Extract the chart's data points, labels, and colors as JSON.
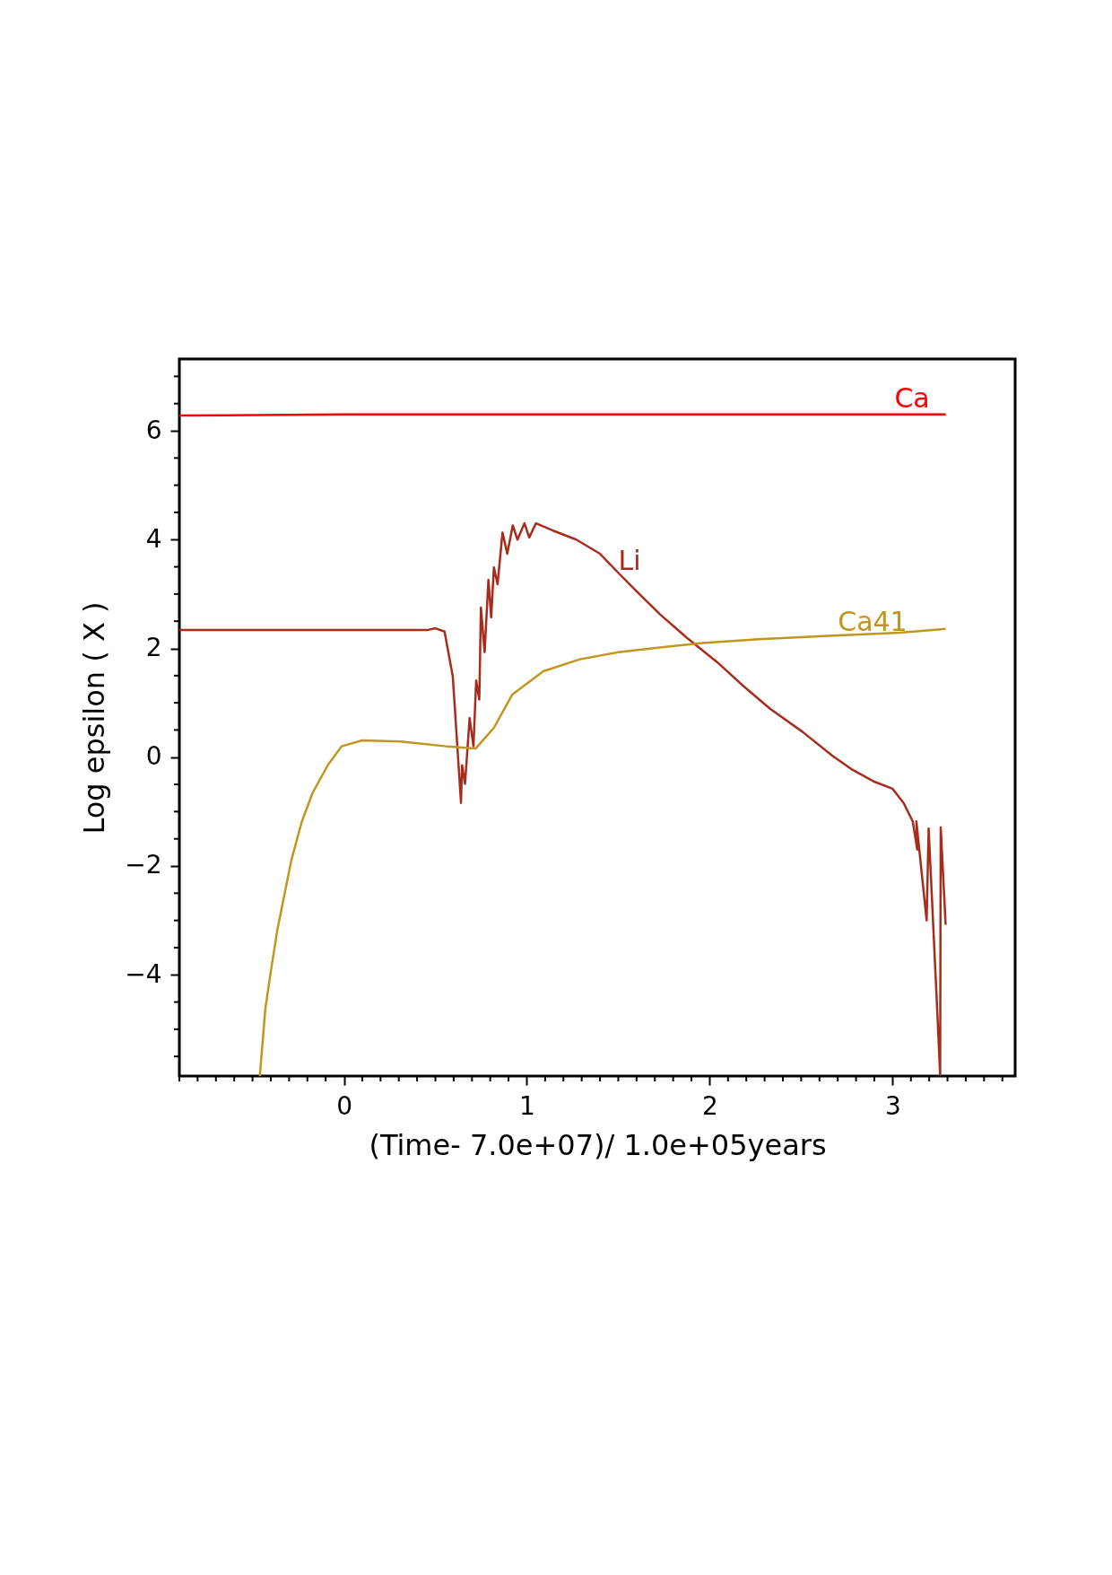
{
  "chart_data": {
    "type": "line",
    "xlabel": "(Time- 7.0e+07)/ 1.0e+05years",
    "ylabel": "Log epsilon ( X )",
    "xlim": [
      -0.9,
      3.67
    ],
    "ylim": [
      -5.86,
      7.32
    ],
    "xticks": [
      {
        "value": -0.9,
        "label": null
      },
      {
        "value": -0.8,
        "label": null
      },
      {
        "value": -0.7,
        "label": null
      },
      {
        "value": -0.6,
        "label": null
      },
      {
        "value": -0.5,
        "label": null
      },
      {
        "value": -0.4,
        "label": null
      },
      {
        "value": -0.3,
        "label": null
      },
      {
        "value": -0.2,
        "label": null
      },
      {
        "value": -0.1,
        "label": null
      },
      0,
      {
        "value": 0.1,
        "label": null
      },
      {
        "value": 0.2,
        "label": null
      },
      {
        "value": 0.3,
        "label": null
      },
      {
        "value": 0.4,
        "label": null
      },
      {
        "value": 0.5,
        "label": null
      },
      {
        "value": 0.6,
        "label": null
      },
      {
        "value": 0.7,
        "label": null
      },
      {
        "value": 0.8,
        "label": null
      },
      {
        "value": 0.9,
        "label": null
      },
      1,
      {
        "value": 1.1,
        "label": null
      },
      {
        "value": 1.2,
        "label": null
      },
      {
        "value": 1.3,
        "label": null
      },
      {
        "value": 1.4,
        "label": null
      },
      {
        "value": 1.5,
        "label": null
      },
      {
        "value": 1.6,
        "label": null
      },
      {
        "value": 1.7,
        "label": null
      },
      {
        "value": 1.8,
        "label": null
      },
      {
        "value": 1.9,
        "label": null
      },
      2,
      {
        "value": 2.1,
        "label": null
      },
      {
        "value": 2.2,
        "label": null
      },
      {
        "value": 2.3,
        "label": null
      },
      {
        "value": 2.4,
        "label": null
      },
      {
        "value": 2.5,
        "label": null
      },
      {
        "value": 2.6,
        "label": null
      },
      {
        "value": 2.7,
        "label": null
      },
      {
        "value": 2.8,
        "label": null
      },
      {
        "value": 2.9,
        "label": null
      },
      3,
      {
        "value": 3.1,
        "label": null
      },
      {
        "value": 3.2,
        "label": null
      },
      {
        "value": 3.3,
        "label": null
      },
      {
        "value": 3.4,
        "label": null
      },
      {
        "value": 3.5,
        "label": null
      },
      {
        "value": 3.6,
        "label": null
      }
    ],
    "yticks": [
      {
        "value": -5.5,
        "label": null
      },
      {
        "value": -5,
        "label": null
      },
      {
        "value": -4.5,
        "label": null
      },
      -4,
      {
        "value": -3.5,
        "label": null
      },
      {
        "value": -3,
        "label": null
      },
      {
        "value": -2.5,
        "label": null
      },
      -2,
      {
        "value": -1.5,
        "label": null
      },
      {
        "value": -1,
        "label": null
      },
      {
        "value": -0.5,
        "label": null
      },
      0,
      {
        "value": 0.5,
        "label": null
      },
      {
        "value": 1,
        "label": null
      },
      {
        "value": 1.5,
        "label": null
      },
      2,
      {
        "value": 2.5,
        "label": null
      },
      {
        "value": 3,
        "label": null
      },
      {
        "value": 3.5,
        "label": null
      },
      4,
      {
        "value": 4.5,
        "label": null
      },
      {
        "value": 5,
        "label": null
      },
      {
        "value": 5.5,
        "label": null
      },
      6,
      {
        "value": 6.5,
        "label": null
      },
      {
        "value": 7,
        "label": null
      }
    ],
    "grid": false,
    "marker": "none",
    "line_style": "solid",
    "series": [
      {
        "color": "#ff0000",
        "x": [
          -0.9,
          0,
          3.29
        ],
        "values": [
          6.28,
          6.3,
          6.3
        ]
      },
      {
        "color": "#a82c1c",
        "x": [
          -0.9,
          0.46,
          0.5,
          0.55,
          0.595,
          0.62,
          0.64,
          0.646,
          0.662,
          0.687,
          0.708,
          0.723,
          0.74,
          0.749,
          0.769,
          0.79,
          0.805,
          0.82,
          0.84,
          0.867,
          0.893,
          0.923,
          0.949,
          0.987,
          1.013,
          1.05,
          1.14,
          1.27,
          1.4,
          1.5,
          1.6,
          1.73,
          1.88,
          2.04,
          2.18,
          2.33,
          2.51,
          2.67,
          2.78,
          2.9,
          3.0,
          3.06,
          3.11,
          3.135,
          3.13,
          3.186,
          3.197,
          3.24,
          3.26,
          3.263,
          3.29
        ],
        "values": [
          2.34,
          2.34,
          2.37,
          2.31,
          1.49,
          0.2,
          -0.84,
          -0.15,
          -0.49,
          0.72,
          0.2,
          1.41,
          1.06,
          2.75,
          1.93,
          3.26,
          2.57,
          3.49,
          3.18,
          4.13,
          3.74,
          4.26,
          4.0,
          4.3,
          4.04,
          4.3,
          4.17,
          4.0,
          3.74,
          3.39,
          3.05,
          2.62,
          2.18,
          1.75,
          1.32,
          0.89,
          0.46,
          0.03,
          -0.23,
          -0.45,
          -0.58,
          -0.84,
          -1.18,
          -1.7,
          -1.18,
          -3.0,
          -1.31,
          -4.37,
          -5.84,
          -1.29,
          -3.08
        ]
      },
      {
        "color": "#c0961e",
        "x": [
          -0.46,
          -0.43,
          -0.4,
          -0.364,
          -0.328,
          -0.286,
          -0.23,
          -0.172,
          -0.089,
          -0.013,
          0.1,
          0.31,
          0.56,
          0.72,
          0.82,
          0.92,
          1.09,
          1.29,
          1.5,
          1.76,
          1.96,
          2.27,
          2.65,
          3.04,
          3.29
        ],
        "values": [
          -5.86,
          -4.63,
          -3.94,
          -3.17,
          -2.57,
          -1.87,
          -1.18,
          -0.66,
          -0.15,
          0.2,
          0.31,
          0.29,
          0.2,
          0.16,
          0.54,
          1.15,
          1.58,
          1.8,
          1.93,
          2.03,
          2.1,
          2.17,
          2.23,
          2.29,
          2.36
        ]
      }
    ],
    "annotations": [
      {
        "text": "Ca",
        "x": 3.01,
        "y": 6.33
      },
      {
        "text": "Li",
        "x": 1.5,
        "y": 3.34
      },
      {
        "text": "Ca41",
        "x": 2.7,
        "y": 2.23
      }
    ]
  }
}
